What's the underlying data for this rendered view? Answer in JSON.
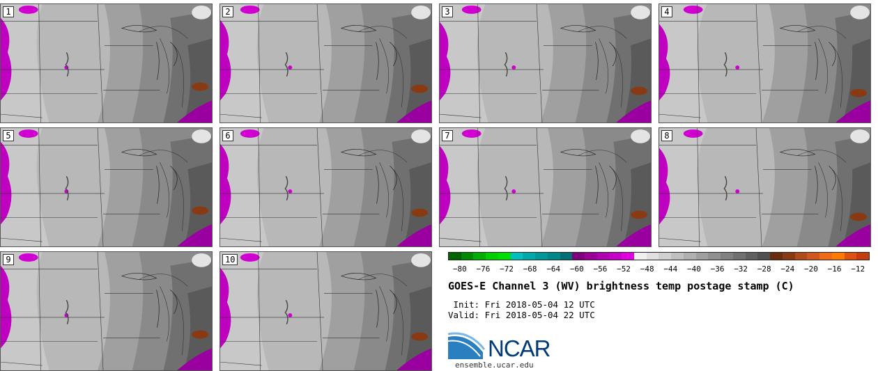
{
  "panels": [
    {
      "label": "1"
    },
    {
      "label": "2"
    },
    {
      "label": "3"
    },
    {
      "label": "4"
    },
    {
      "label": "5"
    },
    {
      "label": "6"
    },
    {
      "label": "7"
    },
    {
      "label": "8"
    },
    {
      "label": "9"
    },
    {
      "label": "10"
    }
  ],
  "colorbar": {
    "colors": [
      "#006400",
      "#008a00",
      "#00b000",
      "#00d000",
      "#00e000",
      "#00c0c0",
      "#00aaaa",
      "#009898",
      "#008888",
      "#007070",
      "#800080",
      "#9a009a",
      "#b000b0",
      "#c800c8",
      "#e000e0",
      "#f0f0f0",
      "#e0e0e0",
      "#d0d0d0",
      "#c0c0c0",
      "#b0b0b0",
      "#a0a0a0",
      "#909090",
      "#808080",
      "#707070",
      "#606060",
      "#505050",
      "#6b2d10",
      "#8a3a12",
      "#b04a18",
      "#d0581c",
      "#ee6a14",
      "#ff7a00",
      "#e05010",
      "#c43d0c"
    ],
    "ticks": [
      "−80",
      "−76",
      "−72",
      "−68",
      "−64",
      "−60",
      "−56",
      "−52",
      "−48",
      "−44",
      "−40",
      "−36",
      "−32",
      "−28",
      "−24",
      "−20",
      "−16",
      "−12"
    ],
    "min": -82,
    "max": -10
  },
  "title": "GOES-E Channel 3 (WV) brightness temp postage stamp (C)",
  "init": " Init: Fri 2018-05-04 12 UTC",
  "valid": "Valid: Fri 2018-05-04 22 UTC",
  "logo_text": "NCAR",
  "site": "ensemble.ucar.edu"
}
